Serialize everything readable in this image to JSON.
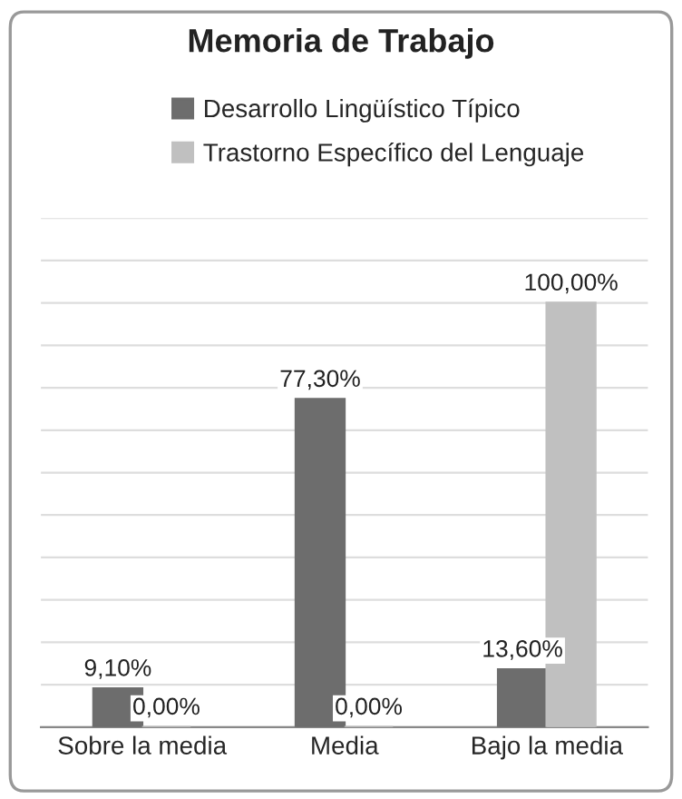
{
  "chart_data": {
    "type": "bar",
    "title": "Memoria de Trabajo",
    "categories": [
      "Sobre la media",
      "Media",
      "Bajo la media"
    ],
    "series": [
      {
        "name": "Desarrollo Lingüístico Típico",
        "color": "#6d6d6d",
        "values": [
          9.1,
          77.3,
          13.6
        ],
        "value_labels": [
          "9,10%",
          "77,30%",
          "13,60%"
        ]
      },
      {
        "name": "Trastorno Específico del Lenguaje",
        "color": "#c0c0c0",
        "values": [
          0,
          0,
          100
        ],
        "value_labels": [
          "0,00%",
          "0,00%",
          "100,00%"
        ]
      }
    ],
    "ylim": [
      0,
      120
    ],
    "yticks": [
      {
        "value": 0,
        "label": null
      },
      {
        "value": 10,
        "label": null
      },
      {
        "value": 20,
        "label": null
      },
      {
        "value": 30,
        "label": null
      },
      {
        "value": 40,
        "label": null
      },
      {
        "value": 50,
        "label": null
      },
      {
        "value": 60,
        "label": null
      },
      {
        "value": 70,
        "label": null
      },
      {
        "value": 80,
        "label": null
      },
      {
        "value": 90,
        "label": null
      },
      {
        "value": 100,
        "label": null
      },
      {
        "value": 110,
        "label": null
      },
      {
        "value": 120,
        "label": null
      }
    ],
    "grid": "y",
    "legend": "top",
    "tick_labels": "x"
  }
}
